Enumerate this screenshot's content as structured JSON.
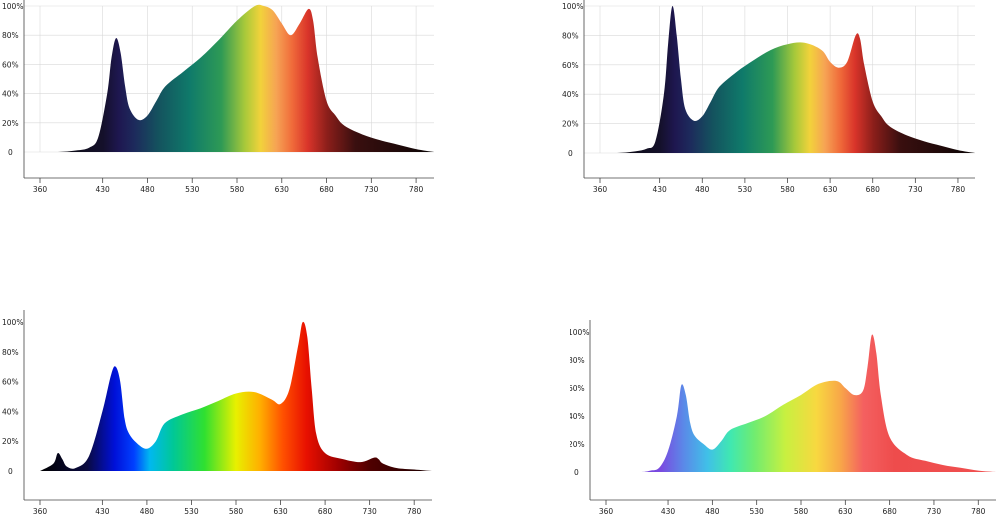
{
  "chart_data": [
    {
      "type": "area",
      "title": "",
      "xlabel": "",
      "ylabel": "",
      "x_ticks": [
        360,
        430,
        480,
        530,
        580,
        630,
        680,
        730,
        780
      ],
      "y_ticks": [
        "0",
        "20%",
        "40%",
        "60%",
        "80%",
        "100%"
      ],
      "xlim": [
        360,
        800
      ],
      "ylim": [
        0,
        100
      ],
      "grid": true,
      "color_scheme": "dark-spectrum",
      "series": [
        {
          "x": [
            360,
            380,
            400,
            415,
            425,
            435,
            440,
            445,
            450,
            455,
            460,
            470,
            480,
            490,
            500,
            520,
            540,
            560,
            580,
            600,
            610,
            620,
            630,
            640,
            650,
            660,
            665,
            670,
            680,
            690,
            700,
            720,
            740,
            760,
            780,
            800
          ],
          "y": [
            0,
            0,
            1,
            3,
            10,
            40,
            65,
            78,
            68,
            45,
            30,
            22,
            25,
            35,
            45,
            55,
            65,
            77,
            90,
            100,
            100,
            97,
            88,
            80,
            88,
            98,
            90,
            65,
            35,
            25,
            18,
            12,
            8,
            5,
            2,
            0
          ]
        }
      ]
    },
    {
      "type": "area",
      "title": "",
      "xlabel": "",
      "ylabel": "",
      "x_ticks": [
        360,
        430,
        480,
        530,
        580,
        630,
        680,
        730,
        780
      ],
      "y_ticks": [
        "0",
        "20%",
        "40%",
        "60%",
        "80%",
        "100%"
      ],
      "xlim": [
        360,
        800
      ],
      "ylim": [
        0,
        100
      ],
      "grid": true,
      "color_scheme": "dark-spectrum",
      "series": [
        {
          "x": [
            360,
            380,
            400,
            415,
            425,
            435,
            440,
            445,
            450,
            455,
            460,
            470,
            480,
            490,
            500,
            520,
            540,
            560,
            580,
            600,
            620,
            630,
            640,
            650,
            660,
            665,
            670,
            680,
            690,
            700,
            720,
            740,
            760,
            780,
            800
          ],
          "y": [
            0,
            0,
            1,
            3,
            8,
            40,
            75,
            100,
            80,
            50,
            30,
            22,
            25,
            35,
            45,
            55,
            63,
            70,
            74,
            75,
            70,
            62,
            58,
            62,
            80,
            78,
            60,
            35,
            25,
            18,
            12,
            8,
            5,
            2,
            0
          ]
        }
      ]
    },
    {
      "type": "area",
      "title": "",
      "xlabel": "",
      "ylabel": "",
      "x_ticks": [
        360,
        430,
        480,
        530,
        580,
        630,
        680,
        730,
        780
      ],
      "y_ticks": [
        "0",
        "20%",
        "40%",
        "60%",
        "80%",
        "100%"
      ],
      "xlim": [
        360,
        800
      ],
      "ylim": [
        0,
        100
      ],
      "grid": false,
      "color_scheme": "bright-spectrum",
      "series": [
        {
          "x": [
            360,
            375,
            380,
            385,
            390,
            400,
            415,
            430,
            440,
            445,
            450,
            455,
            460,
            470,
            480,
            490,
            500,
            520,
            540,
            560,
            580,
            600,
            620,
            630,
            640,
            650,
            655,
            660,
            665,
            670,
            680,
            700,
            720,
            735,
            740,
            745,
            760,
            780,
            800
          ],
          "y": [
            0,
            5,
            12,
            8,
            3,
            2,
            10,
            40,
            65,
            70,
            60,
            35,
            25,
            18,
            15,
            20,
            32,
            38,
            42,
            47,
            52,
            53,
            48,
            45,
            55,
            85,
            100,
            90,
            55,
            25,
            12,
            8,
            6,
            9,
            8,
            5,
            2,
            1,
            0
          ]
        }
      ]
    },
    {
      "type": "area",
      "title": "",
      "xlabel": "",
      "ylabel": "",
      "x_ticks": [
        360,
        430,
        480,
        530,
        580,
        630,
        680,
        730,
        780
      ],
      "y_ticks": [
        "0",
        "20%",
        "40%",
        "60%",
        "80%",
        "100%"
      ],
      "xlim": [
        360,
        800
      ],
      "ylim": [
        0,
        100
      ],
      "grid": false,
      "color_scheme": "pastel-spectrum",
      "series": [
        {
          "x": [
            360,
            380,
            400,
            410,
            420,
            430,
            440,
            445,
            450,
            455,
            460,
            470,
            480,
            490,
            500,
            520,
            540,
            560,
            580,
            600,
            620,
            630,
            640,
            650,
            655,
            660,
            665,
            670,
            680,
            700,
            720,
            740,
            760,
            780,
            800
          ],
          "y": [
            0,
            0,
            0,
            1,
            3,
            15,
            40,
            62,
            55,
            35,
            26,
            20,
            16,
            22,
            30,
            35,
            40,
            48,
            55,
            63,
            65,
            60,
            55,
            58,
            75,
            98,
            85,
            55,
            25,
            12,
            8,
            5,
            3,
            1,
            0
          ]
        }
      ]
    }
  ]
}
